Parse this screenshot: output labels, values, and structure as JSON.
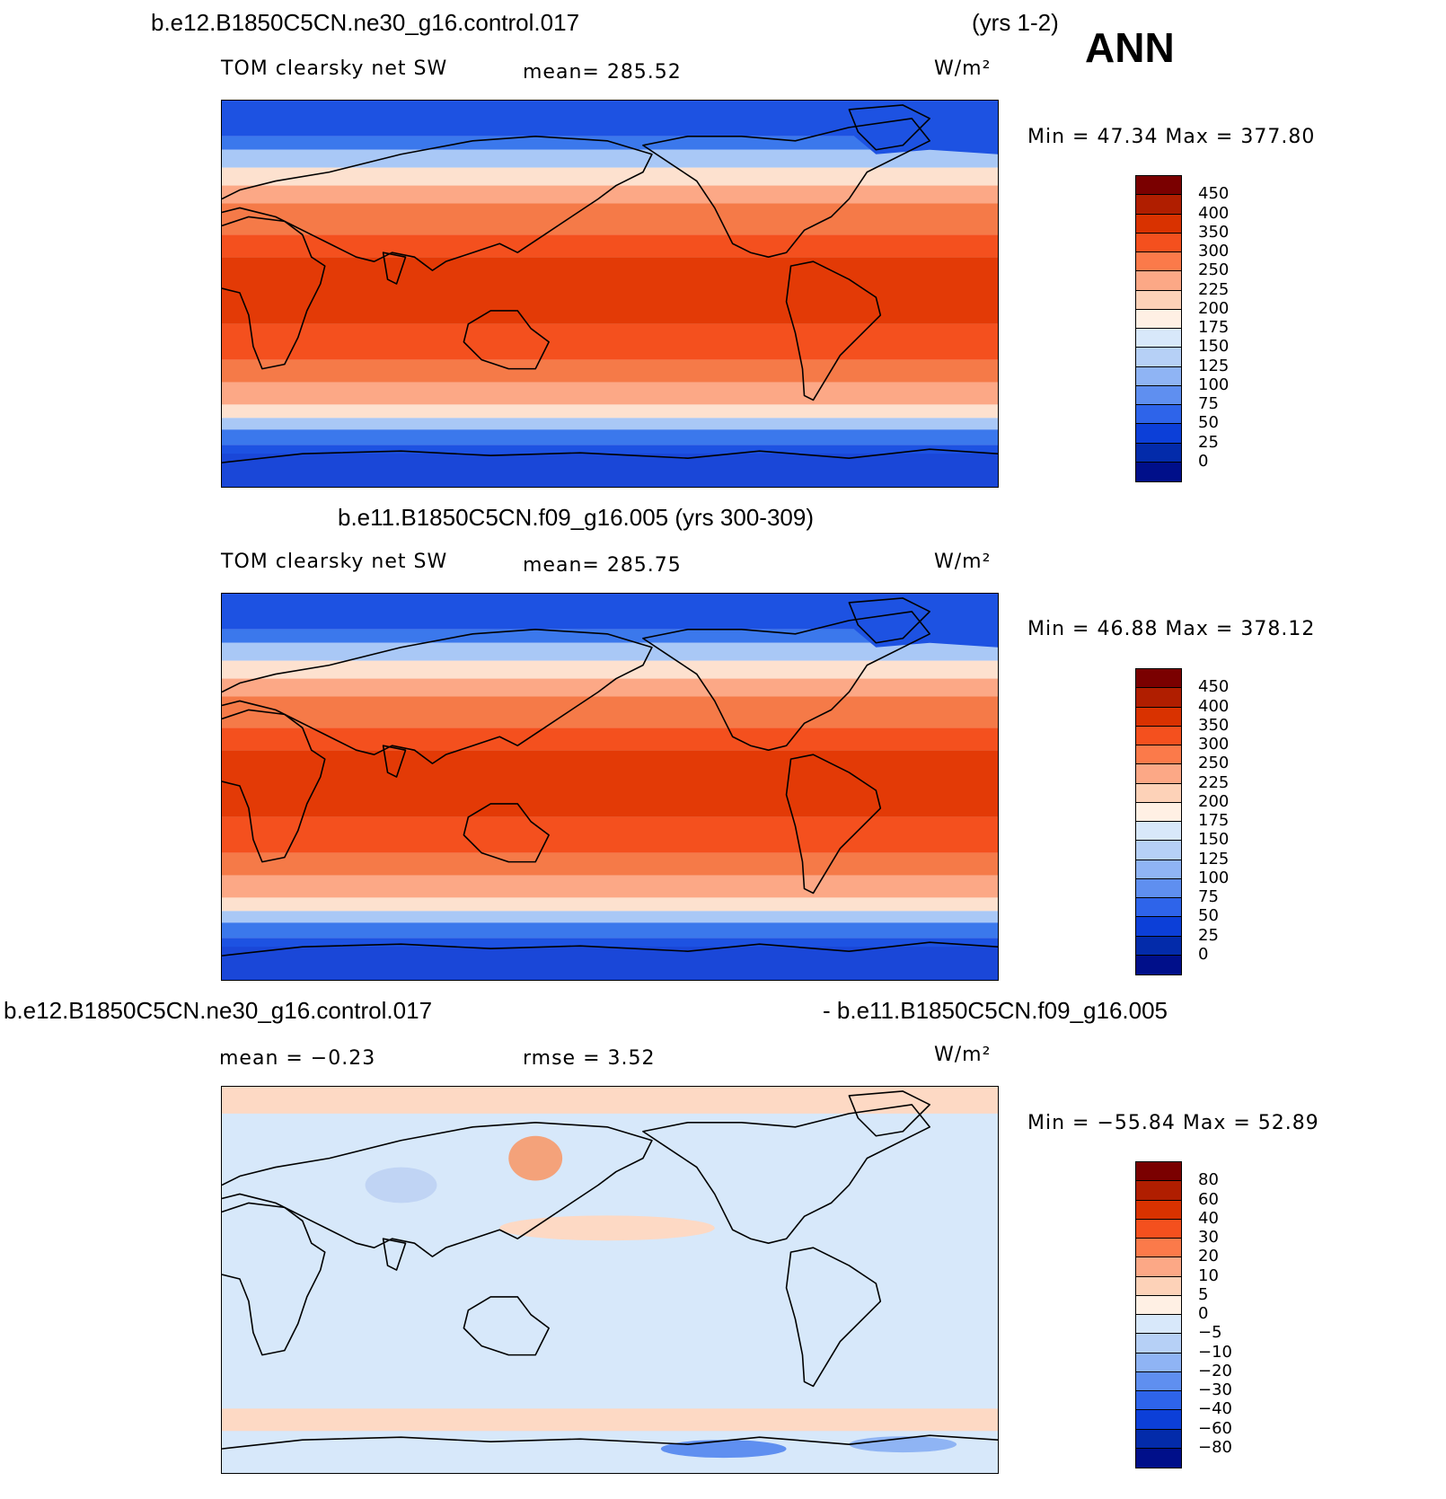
{
  "header": {
    "case1": "b.e12.B1850C5CN.ne30_g16.control.017",
    "years1": "(yrs 1-2)",
    "season": "ANN",
    "case2": "b.e11.B1850C5CN.f09_g16.005 (yrs 300-309)",
    "diff_left": "b.e12.B1850C5CN.ne30_g16.control.017",
    "diff_right": "- b.e11.B1850C5CN.f09_g16.005"
  },
  "panels": [
    {
      "variable": "TOM clearsky net SW",
      "stat1": "mean=  285.52",
      "stat2": "",
      "units": "W/m²",
      "minmax": "Min =   47.34  Max  =  377.80",
      "levels": [
        "450",
        "400",
        "350",
        "300",
        "250",
        "225",
        "200",
        "175",
        "150",
        "125",
        "100",
        "75",
        "50",
        "25",
        "0"
      ]
    },
    {
      "variable": "TOM clearsky net SW",
      "stat1": "mean=  285.75",
      "stat2": "",
      "units": "W/m²",
      "minmax": "Min =   46.88  Max  =  378.12",
      "levels": [
        "450",
        "400",
        "350",
        "300",
        "250",
        "225",
        "200",
        "175",
        "150",
        "125",
        "100",
        "75",
        "50",
        "25",
        "0"
      ]
    },
    {
      "variable": "",
      "stat1": "mean  =   −0.23",
      "stat2": "rmse  =     3.52",
      "units": "W/m²",
      "minmax": "Min  =  −55.84  Max  =    52.89",
      "levels": [
        "80",
        "60",
        "40",
        "30",
        "20",
        "10",
        "5",
        "0",
        "−5",
        "−10",
        "−20",
        "−30",
        "−40",
        "−60",
        "−80"
      ]
    }
  ],
  "colors": {
    "scale": [
      "#7a0000",
      "#b01e00",
      "#d93200",
      "#f4501e",
      "#fb7a4a",
      "#fca886",
      "#fdd2b8",
      "#fff0e4",
      "#d8e8fa",
      "#b6d0f6",
      "#8fb4f4",
      "#5f8ff0",
      "#2e64ea",
      "#0c3fd8",
      "#032baa",
      "#000f8a"
    ],
    "sw_zones": [
      "#1d52e2",
      "#3b78ec",
      "#a9c8f6",
      "#fde1cf",
      "#fca886",
      "#f57a48",
      "#f4501e",
      "#e33a06"
    ],
    "diff_bg": "#d7e8fa",
    "diff_warm": "#fdd9c4",
    "diff_blue": "#5f8ff0",
    "land_outline": "#000000"
  }
}
